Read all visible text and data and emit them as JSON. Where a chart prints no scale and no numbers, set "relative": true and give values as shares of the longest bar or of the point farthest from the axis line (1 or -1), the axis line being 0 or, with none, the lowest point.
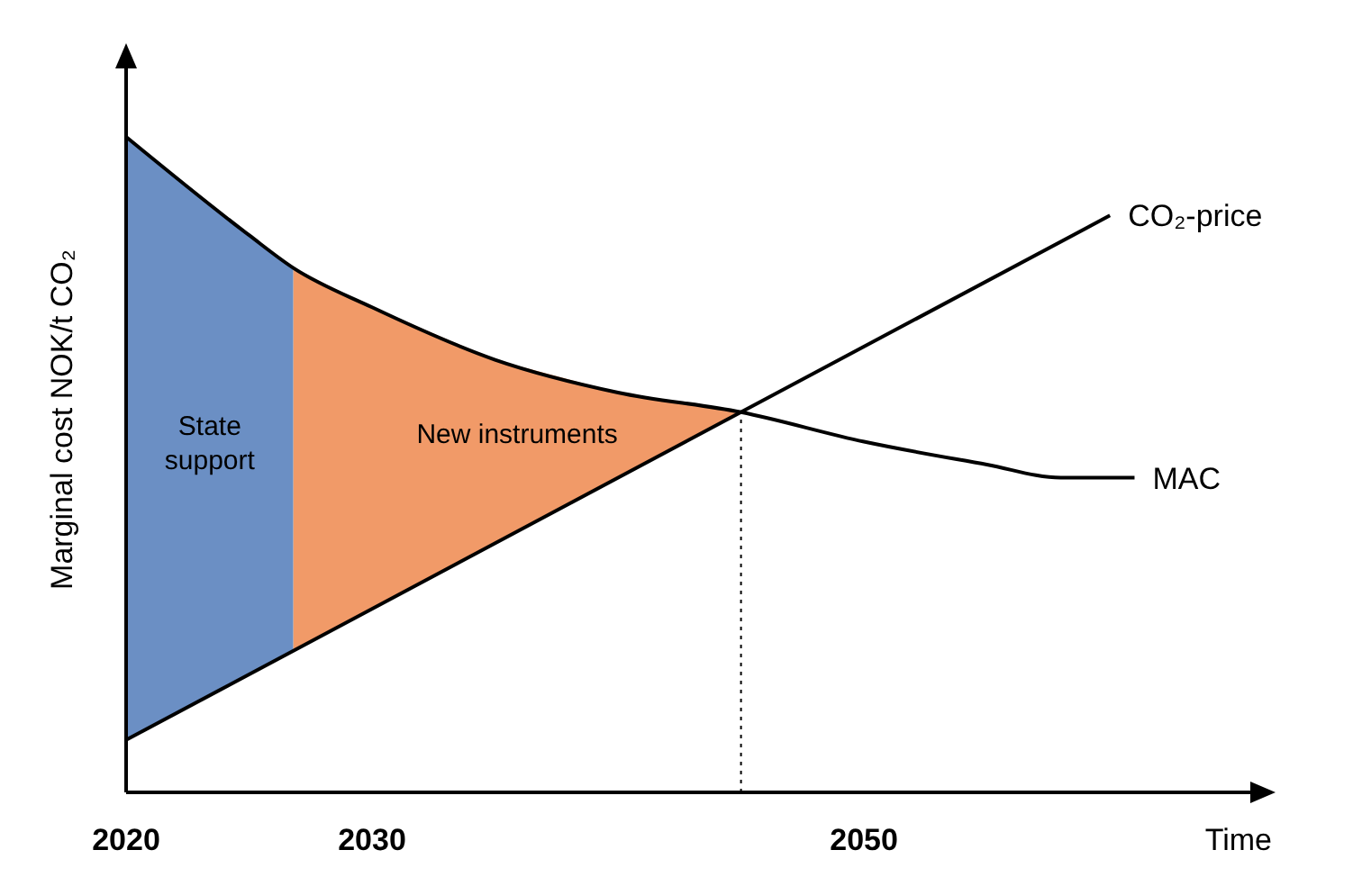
{
  "chart_data": {
    "type": "line",
    "relative": true,
    "xlabel": "Time",
    "ylabel": "Marginal cost NOK/t CO₂",
    "xlim": [
      2020,
      2066
    ],
    "xticks": [
      2020,
      2030,
      2050
    ],
    "grid": false,
    "legend": false,
    "series": [
      {
        "type": "area",
        "name": "State support",
        "color": "#6b8fc4",
        "x": [
          2020,
          2025,
          2026.8
        ],
        "values": [
          1.0,
          0.85,
          0.8
        ]
      },
      {
        "type": "area",
        "name": "New instruments",
        "color": "#f19a68",
        "x": [
          2026.8,
          2030,
          2035,
          2040,
          2045
        ],
        "values": [
          0.8,
          0.74,
          0.66,
          0.61,
          0.58
        ]
      },
      {
        "type": "line",
        "name": "CO₂-price",
        "color": "#000000",
        "x": [
          2020,
          2060
        ],
        "values": [
          0.08,
          0.88
        ]
      },
      {
        "type": "line",
        "name": "MAC",
        "color": "#000000",
        "x": [
          2020,
          2025,
          2026.8,
          2030,
          2035,
          2040,
          2045,
          2050,
          2055,
          2058,
          2061
        ],
        "values": [
          1.0,
          0.85,
          0.8,
          0.74,
          0.66,
          0.61,
          0.58,
          0.535,
          0.5,
          0.48,
          0.48
        ]
      }
    ],
    "ref_lines": [
      {
        "axis": "x",
        "value": 2045,
        "line_style": "dotted",
        "color": "#000000"
      }
    ]
  }
}
